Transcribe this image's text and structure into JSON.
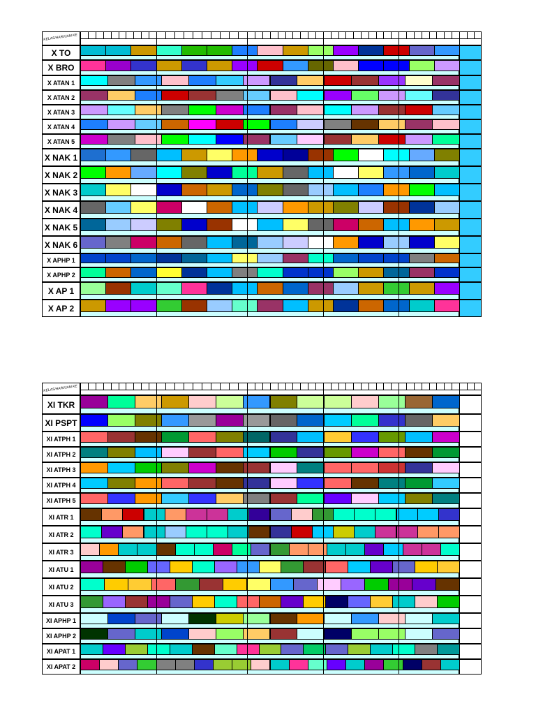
{
  "corner_label": "KELAS/HARI/JAM KE",
  "colors": {
    "sub_row": "#ccffff",
    "tail_table1": "#33ccff",
    "tail_table2": "#ffffff",
    "grid": "#000000"
  },
  "tables": [
    {
      "rows": [
        {
          "label": "X TO",
          "big": true,
          "cells": [
            "#00bcd4",
            "#00bcd4",
            "#cc9900",
            "#33ffcc",
            "#22bb00",
            "#22bb00",
            "#1e7fff",
            "#ffc0cb",
            "#cc9900",
            "#99ff66",
            "#9900ff",
            "#003399",
            "#cc0000",
            "#6666cc",
            "#3399ff"
          ]
        },
        {
          "label": "X BRO",
          "big": true,
          "cells": [
            "#ff3399",
            "#9900cc",
            "#3333cc",
            "#cc9900",
            "#3333cc",
            "#cc9900",
            "#9900ff",
            "#cc0000",
            "#3399ff",
            "#666600",
            "#ffc0cb",
            "#0000ff",
            "#0000ff",
            "#99ff66",
            "#cc99ff"
          ]
        },
        {
          "label": "X ATAN 1",
          "big": false,
          "cells": [
            "#00ffff",
            "#808080",
            "#3399ff",
            "#ffc0cb",
            "#1e7fff",
            "#33ccff",
            "#cc99ff",
            "#333399",
            "#ffcc66",
            "#cc0000",
            "#993333",
            "#9933ff",
            "#ffffcc",
            "#993366"
          ]
        },
        {
          "label": "X ATAN 2",
          "big": false,
          "cells": [
            "#993366",
            "#ffcc66",
            "#1e7fff",
            "#cc0000",
            "#993333",
            "#808080",
            "#66ccff",
            "#ffc0cb",
            "#00ffff",
            "#9900ff",
            "#66ff66",
            "#cc99ff",
            "#66ffff",
            "#333399"
          ]
        },
        {
          "label": "X ATAN 3",
          "big": false,
          "cells": [
            "#cc99ff",
            "#66ffff",
            "#ffcc66",
            "#808080",
            "#00ff00",
            "#cc00cc",
            "#1e7fff",
            "#993366",
            "#ffc0cb",
            "#00ffff",
            "#cc99ff",
            "#993333",
            "#cc0000",
            "#66ccff"
          ]
        },
        {
          "label": "X ATAN 4",
          "big": false,
          "cells": [
            "#1e7fff",
            "#cc99ff",
            "#66ccff",
            "#cc6600",
            "#ff00ff",
            "#cc0000",
            "#00ff00",
            "#1e7fff",
            "#ccccff",
            "#808080",
            "#663300",
            "#ffcc66",
            "#993366",
            "#ffc0cb"
          ]
        },
        {
          "label": "X ATAN 5",
          "big": false,
          "cells": [
            "#cc00cc",
            "#808080",
            "#ffc0cb",
            "#00ff00",
            "#00ffff",
            "#0000ff",
            "#993366",
            "#66ccff",
            "#ffccff",
            "#993333",
            "#ffcc66",
            "#cc0000",
            "#cc99ff",
            "#00ff99"
          ]
        },
        {
          "label": "X NAK 1",
          "big": true,
          "cells": [
            "#1e6fd0",
            "#3399ff",
            "#666666",
            "#00bfff",
            "#cc9900",
            "#ffff66",
            "#ff9900",
            "#0000cc",
            "#000099",
            "#993300",
            "#00ff00",
            "#ffffff",
            "#00ffff",
            "#66aaff",
            "#808000"
          ]
        },
        {
          "label": "X NAK 2",
          "big": true,
          "cells": [
            "#00ff00",
            "#ff9900",
            "#66aaff",
            "#00ffff",
            "#808000",
            "#0000cc",
            "#00ff99",
            "#cc9900",
            "#666666",
            "#00bfff",
            "#ffffff",
            "#ffff66",
            "#3399ff",
            "#0066cc",
            "#00cccc"
          ]
        },
        {
          "label": "X NAK 3",
          "big": true,
          "cells": [
            "#00cccc",
            "#ffff66",
            "#ffffff",
            "#0000cc",
            "#cc6600",
            "#cc9900",
            "#0066cc",
            "#808000",
            "#666666",
            "#99ccff",
            "#00bfff",
            "#1e7fff",
            "#ff9900",
            "#00ff00",
            "#00bfff"
          ]
        },
        {
          "label": "X NAK 4",
          "big": true,
          "cells": [
            "#666666",
            "#66ccff",
            "#ffff66",
            "#cc0066",
            "#ffffff",
            "#cc6600",
            "#00bfff",
            "#ccccff",
            "#ff9900",
            "#cc9900",
            "#808000",
            "#ccccff",
            "#993300",
            "#003399",
            "#99ccff"
          ]
        },
        {
          "label": "X NAK 5",
          "big": true,
          "cells": [
            "#006699",
            "#99ccff",
            "#ccccff",
            "#808000",
            "#0000cc",
            "#993300",
            "#ffffff",
            "#00bfff",
            "#ffff66",
            "#666666",
            "#cc0066",
            "#cc6600",
            "#00bfff",
            "#ff9900",
            "#cc9900"
          ]
        },
        {
          "label": "X NAK 6",
          "big": true,
          "cells": [
            "#6666cc",
            "#808080",
            "#cc0066",
            "#cc6600",
            "#666666",
            "#00bfff",
            "#006699",
            "#99ccff",
            "#ccccff",
            "#ffffff",
            "#ff9900",
            "#0000cc",
            "#99ccff",
            "#0000cc",
            "#ffff66"
          ]
        },
        {
          "label": "X APHP 1",
          "big": false,
          "cells": [
            "#0044cc",
            "#0044cc",
            "#0066cc",
            "#003399",
            "#006699",
            "#00bfff",
            "#ffff66",
            "#99ccff",
            "#993366",
            "#00ffcc",
            "#0066cc",
            "#0044cc",
            "#0044cc",
            "#808080",
            "#cc6600"
          ]
        },
        {
          "label": "X APHP 2",
          "big": false,
          "cells": [
            "#00ff99",
            "#cc6600",
            "#0066cc",
            "#ffff33",
            "#003399",
            "#00bfff",
            "#808080",
            "#00ffcc",
            "#0033cc",
            "#0033cc",
            "#99ff66",
            "#cc9900",
            "#006699",
            "#993366",
            "#0033cc"
          ]
        },
        {
          "label": "X AP 1",
          "big": true,
          "cells": [
            "#99ff99",
            "#993300",
            "#00cccc",
            "#66ffcc",
            "#ff3399",
            "#003399",
            "#00bfff",
            "#cc6600",
            "#0066cc",
            "#993366",
            "#99ccff",
            "#cc9900",
            "#33cc33",
            "#cc9900",
            "#9900ff"
          ]
        },
        {
          "label": "X AP 2",
          "big": true,
          "cells": [
            "#cc9900",
            "#9900ff",
            "#9900ff",
            "#33cc33",
            "#993300",
            "#99ccff",
            "#66ffcc",
            "#993366",
            "#00bfff",
            "#cc9900",
            "#003399",
            "#cc6600",
            "#0066cc",
            "#00cccc",
            "#ff3399"
          ]
        }
      ]
    },
    {
      "rows": [
        {
          "label": "XI TKR",
          "big": true,
          "cells": [
            "#990099",
            "#00ff99",
            "#ffcc66",
            "#cc9900",
            "#ffcccc",
            "#ccff99",
            "#3399ff",
            "#808000",
            "#ccff99",
            "#ccff99",
            "#ffcccc",
            "#99ff99",
            "#996633",
            "#0066cc"
          ]
        },
        {
          "label": "XI PSPT",
          "big": true,
          "cells": [
            "#0000ff",
            "#99ff66",
            "#808000",
            "#3399ff",
            "#999999",
            "#990099",
            "#999999",
            "#666666",
            "#0066cc",
            "#00ccff",
            "#00ff99",
            "#3333cc",
            "#666666",
            "#ffcc66"
          ]
        },
        {
          "label": "XI ATPH 1",
          "big": false,
          "cells": [
            "#ff6666",
            "#993333",
            "#663300",
            "#009933",
            "#ff6666",
            "#808000",
            "#006666",
            "#333399",
            "#00bfff",
            "#ffcc33",
            "#3333ff",
            "#669900",
            "#00bfff",
            "#cc00cc"
          ]
        },
        {
          "label": "XI ATPH 2",
          "big": false,
          "cells": [
            "#008080",
            "#808000",
            "#00bfff",
            "#ffccff",
            "#993333",
            "#ff6666",
            "#00ccff",
            "#00cc00",
            "#333399",
            "#669900",
            "#cc00cc",
            "#ff6666",
            "#663300",
            "#009933"
          ]
        },
        {
          "label": "XI ATPH 3",
          "big": false,
          "cells": [
            "#ff9900",
            "#00ccff",
            "#00cc00",
            "#808000",
            "#cc00cc",
            "#663300",
            "#993333",
            "#ffccff",
            "#008080",
            "#ff6666",
            "#ff6666",
            "#cc3333",
            "#333399",
            "#ffccff"
          ]
        },
        {
          "label": "XI ATPH 4",
          "big": false,
          "cells": [
            "#00ccff",
            "#808000",
            "#ff9900",
            "#ff6666",
            "#993333",
            "#663300",
            "#333399",
            "#ffccff",
            "#3333ff",
            "#ff6666",
            "#663300",
            "#008080",
            "#009933",
            "#33ccff"
          ]
        },
        {
          "label": "XI ATPH 5",
          "big": false,
          "cells": [
            "#ff6666",
            "#3333ff",
            "#ff9900",
            "#33ccff",
            "#3333ff",
            "#ffcc66",
            "#808080",
            "#993333",
            "#00ff99",
            "#6600ff",
            "#ffccff",
            "#00ccff",
            "#808000",
            "#008080"
          ]
        },
        {
          "label": "XI ATR 1",
          "big": false,
          "cells": [
            "#663300",
            "#ff9966",
            "#cc0000",
            "#00cccc",
            "#ff9966",
            "#cc3399",
            "#cc3399",
            "#00cccc",
            "#330099",
            "#6666cc",
            "#ffcccc",
            "#339933",
            "#00ffcc",
            "#00ffcc",
            "#00ffcc",
            "#00ccff",
            "#00ccff",
            "#3333cc"
          ]
        },
        {
          "label": "XI ATR 2",
          "big": false,
          "cells": [
            "#00ffcc",
            "#6600cc",
            "#ff9966",
            "#00cccc",
            "#99ccff",
            "#00ffcc",
            "#00ffcc",
            "#00cccc",
            "#663300",
            "#333399",
            "#cc0000",
            "#00ccff",
            "#cccc00",
            "#00cccc",
            "#cc3399",
            "#cc3399",
            "#ff9966",
            "#ff9966"
          ]
        },
        {
          "label": "XI ATR 3",
          "big": false,
          "cells": [
            "#ffcccc",
            "#ff9900",
            "#00cccc",
            "#00cccc",
            "#663300",
            "#00ffcc",
            "#00ffcc",
            "#cc0066",
            "#00ff99",
            "#6666cc",
            "#339933",
            "#ff9966",
            "#ff9966",
            "#00cccc",
            "#00cccc",
            "#6600cc",
            "#00ccff",
            "#cc3399",
            "#cc3399",
            "#00ffcc"
          ]
        },
        {
          "label": "XI ATU 1",
          "big": false,
          "cells": [
            "#990099",
            "#663300",
            "#00cc00",
            "#6666ff",
            "#ffcc00",
            "#00ffcc",
            "#9966ff",
            "#3399ff",
            "#ffff66",
            "#339933",
            "#993333",
            "#ff6666",
            "#00ccff",
            "#6600cc",
            "#6666cc",
            "#ffcc00",
            "#ffcc33"
          ]
        },
        {
          "label": "XI ATU 2",
          "big": false,
          "cells": [
            "#00ffcc",
            "#ffcc00",
            "#ffcc33",
            "#ff6666",
            "#339933",
            "#993333",
            "#ffcc00",
            "#ffff66",
            "#3399ff",
            "#6666cc",
            "#ffccff",
            "#9966ff",
            "#00cc00",
            "#990099",
            "#6600cc",
            "#663300"
          ]
        },
        {
          "label": "XI ATU 3",
          "big": false,
          "cells": [
            "#339933",
            "#9966ff",
            "#993333",
            "#990099",
            "#6666cc",
            "#ffcc00",
            "#00ffcc",
            "#ff6666",
            "#cc6600",
            "#6600cc",
            "#ffcc00",
            "#000066",
            "#6666ff",
            "#ffcc33",
            "#00cccc",
            "#ffcccc",
            "#00cc00"
          ]
        },
        {
          "label": "XI APHP 1",
          "big": false,
          "cells": [
            "#ccffff",
            "#0044cc",
            "#6666cc",
            "#ccffff",
            "#003300",
            "#cccc00",
            "#99ff99",
            "#663300",
            "#ff9900",
            "#ccffff",
            "#3399ff",
            "#ffcccc",
            "#ccffff",
            "#00cccc"
          ]
        },
        {
          "label": "XI APHP 2",
          "big": false,
          "cells": [
            "#003300",
            "#6666cc",
            "#00cccc",
            "#0044cc",
            "#ffcccc",
            "#99ff66",
            "#ffcc66",
            "#993333",
            "#ccffff",
            "#000066",
            "#99ff66",
            "#99ff66",
            "#ccffff",
            "#6666cc"
          ]
        },
        {
          "label": "XI APAT 1",
          "big": false,
          "cells": [
            "#00cccc",
            "#6600ff",
            "#99cc33",
            "#00ffcc",
            "#00cccc",
            "#663300",
            "#66ffcc",
            "#ff3399",
            "#99cc33",
            "#6666cc",
            "#00cc66",
            "#6666cc",
            "#99cc33",
            "#00cccc",
            "#00ffcc",
            "#808080",
            "#009999"
          ]
        },
        {
          "label": "XI APAT 2",
          "big": false,
          "cells": [
            "#cc0066",
            "#ffcccc",
            "#6666cc",
            "#33cc33",
            "#808080",
            "#808080",
            "#3333cc",
            "#99cc33",
            "#99cc33",
            "#ffcccc",
            "#00cccc",
            "#ff3399",
            "#66ffcc",
            "#6600ff",
            "#00cccc",
            "#990099",
            "#33cc33",
            "#000066",
            "#993333",
            "#00cccc"
          ]
        }
      ]
    }
  ]
}
